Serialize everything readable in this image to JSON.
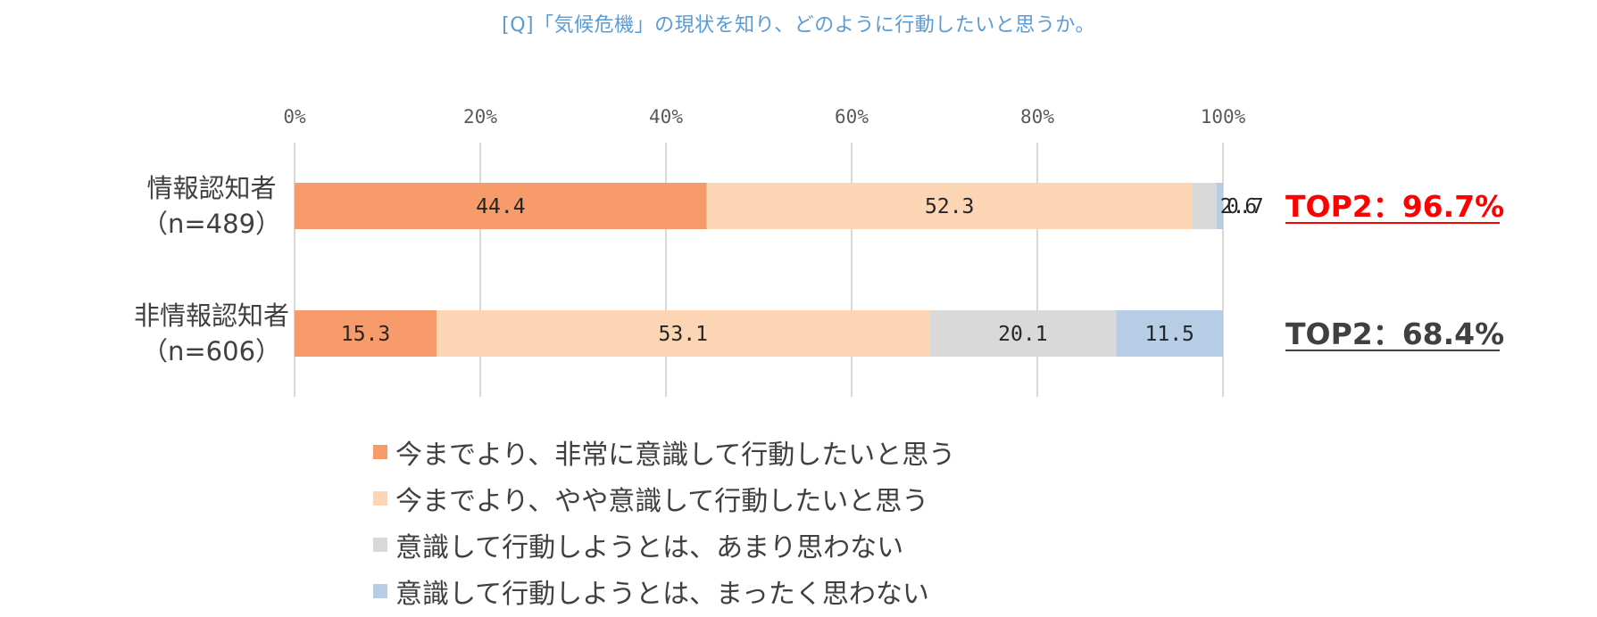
{
  "title": "[Q]「気候危機」の現状を知り、どのように行動したいと思うか。",
  "colors": {
    "s1": "#f79b6b",
    "s2": "#fcd5b5",
    "s3": "#d9d9d9",
    "s4": "#b7cde6",
    "gridline": "#d9d9d9",
    "title": "#5b9bd5",
    "top2_highlight": "#ff0000",
    "text": "#404040"
  },
  "chart_data": {
    "type": "bar",
    "orientation": "horizontal",
    "stacked": true,
    "title": "[Q]「気候危機」の現状を知り、どのように行動したいと思うか。",
    "categories": [
      [
        "情報認知者",
        "（n=489）"
      ],
      [
        "非情報認知者",
        "（n=606）"
      ]
    ],
    "series": [
      {
        "name": "今までより、非常に意識して行動したいと思う",
        "values": [
          44.4,
          15.3
        ]
      },
      {
        "name": "今までより、やや意識して行動したいと思う",
        "values": [
          52.3,
          53.1
        ]
      },
      {
        "name": "意識して行動しようとは、あまり思わない",
        "values": [
          2.6,
          20.1
        ]
      },
      {
        "name": "意識して行動しようとは、まったく思わない",
        "values": [
          0.7,
          11.5
        ]
      }
    ],
    "data_labels": [
      [
        "44.4",
        "15.3"
      ],
      [
        "52.3",
        "53.1"
      ],
      [
        "2.6",
        "20.1"
      ],
      [
        "0.7",
        "11.5"
      ]
    ],
    "xlim": [
      0,
      100
    ],
    "xticks": [
      "0%",
      "20%",
      "40%",
      "60%",
      "80%",
      "100%"
    ],
    "axis_position": "top",
    "grid": true,
    "legend_position": "bottom",
    "annotations": [
      "TOP2：96.7%",
      "TOP2：68.4%"
    ]
  }
}
